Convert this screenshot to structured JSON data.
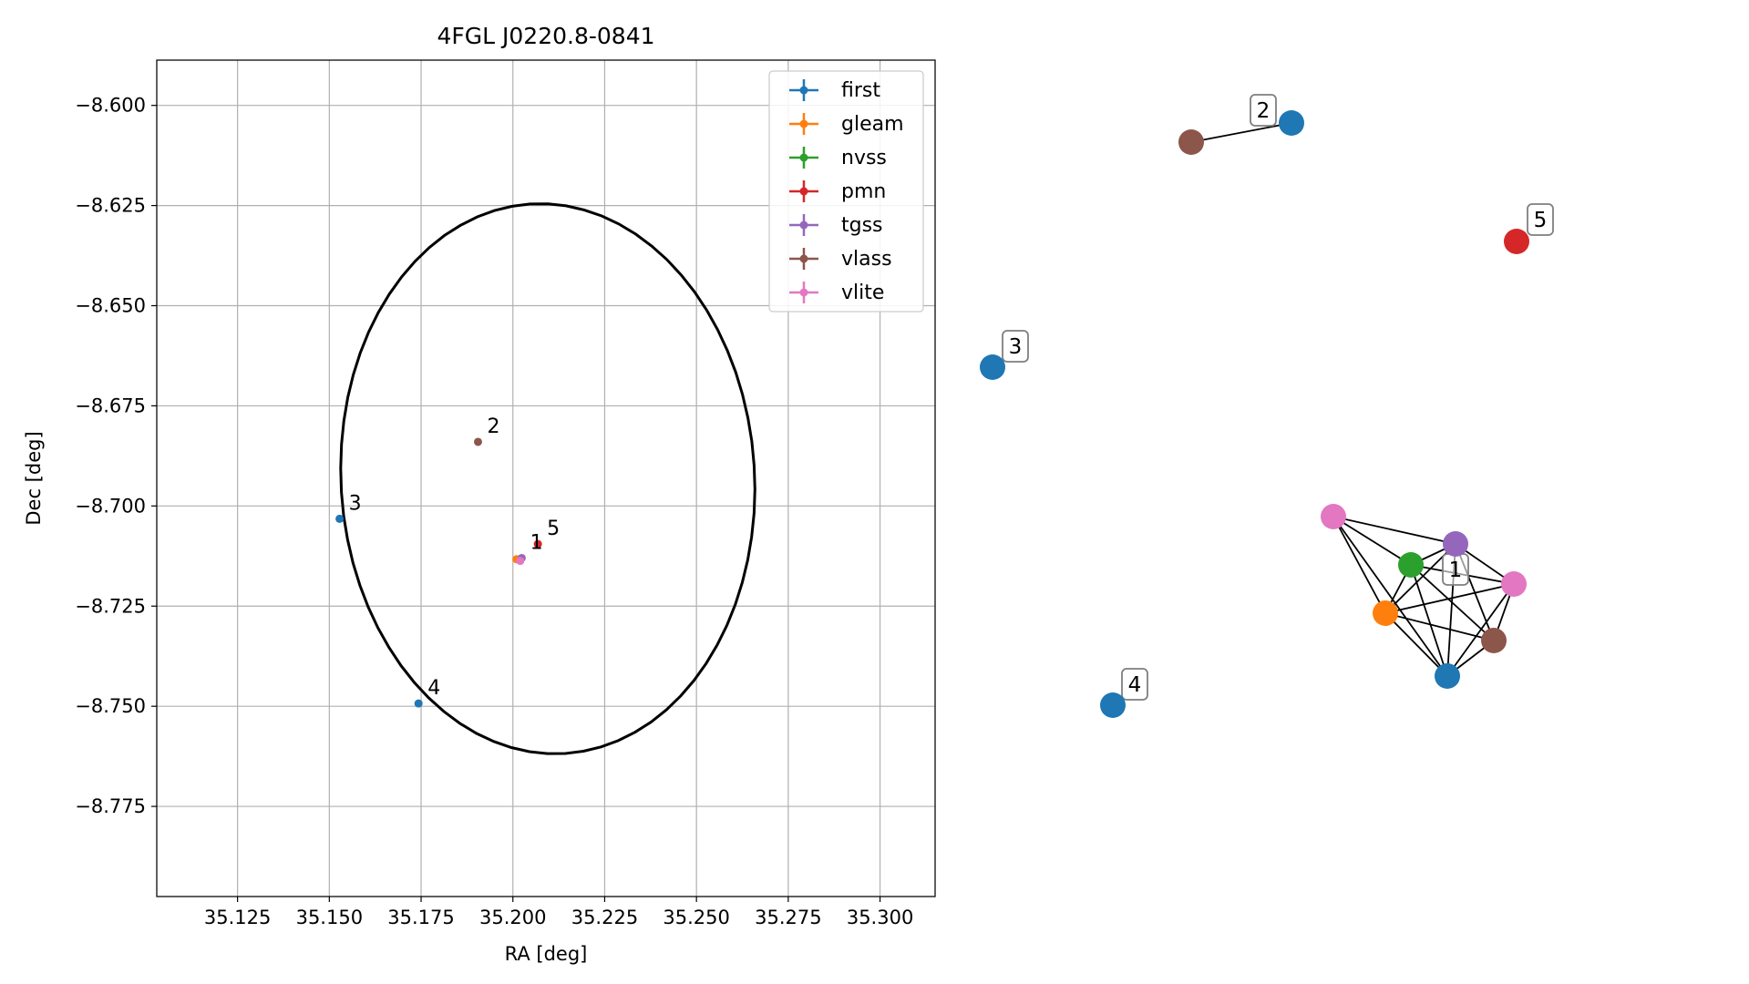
{
  "chart_data": [
    {
      "type": "scatter",
      "title": "4FGL J0220.8-0841",
      "xlabel": "RA [deg]",
      "ylabel": "Dec [deg]",
      "xlim": [
        35.103,
        35.315
      ],
      "ylim": [
        -8.7975,
        -8.5887
      ],
      "x_ticks": [
        "35.125",
        "35.150",
        "35.175",
        "35.200",
        "35.225",
        "35.250",
        "35.275",
        "35.300"
      ],
      "y_ticks": [
        "−8.600",
        "−8.625",
        "−8.650",
        "−8.675",
        "−8.700",
        "−8.725",
        "−8.750",
        "−8.775"
      ],
      "grid": true,
      "legend_position": "upper right",
      "colors": {
        "first": "#1f77b4",
        "gleam": "#ff7f0e",
        "nvss": "#2ca02c",
        "pmn": "#d62728",
        "tgss": "#9467bd",
        "vlass": "#8c564b",
        "vlite": "#e377c2"
      },
      "legend": [
        "first",
        "gleam",
        "nvss",
        "pmn",
        "tgss",
        "vlass",
        "vlite"
      ],
      "ellipse": {
        "center": [
          35.2095,
          -8.6932
        ],
        "ra_half_width": 0.0565,
        "dec_half_height": 0.0685,
        "rotation_deg": -6,
        "color": "#000000"
      },
      "points": [
        {
          "survey": "vlass",
          "ra": 35.1905,
          "dec": -8.684
        },
        {
          "survey": "first",
          "ra": 35.1528,
          "dec": -8.7032
        },
        {
          "survey": "first",
          "ra": 35.1743,
          "dec": -8.7493
        },
        {
          "survey": "pmn",
          "ra": 35.2068,
          "dec": -8.7095
        },
        {
          "survey": "gleam",
          "ra": 35.201,
          "dec": -8.7133
        },
        {
          "survey": "tgss",
          "ra": 35.2024,
          "dec": -8.713
        },
        {
          "survey": "vlite",
          "ra": 35.202,
          "dec": -8.7137
        }
      ],
      "point_labels": [
        {
          "text": "2",
          "ra": 35.1905,
          "dec": -8.684
        },
        {
          "text": "3",
          "ra": 35.1528,
          "dec": -8.7032
        },
        {
          "text": "4",
          "ra": 35.1743,
          "dec": -8.7493
        },
        {
          "text": "5",
          "ra": 35.2068,
          "dec": -8.7095
        },
        {
          "text": "1",
          "ra": 35.2022,
          "dec": -8.713
        }
      ]
    },
    {
      "type": "network",
      "nodes": [
        {
          "id": "g2_first",
          "survey": "first"
        },
        {
          "id": "g2_vlass",
          "survey": "vlass"
        },
        {
          "id": "g5_pmn",
          "survey": "pmn"
        },
        {
          "id": "g3_first",
          "survey": "first"
        },
        {
          "id": "g4_first",
          "survey": "first"
        },
        {
          "id": "g1_vlite_a",
          "survey": "vlite"
        },
        {
          "id": "g1_tgss",
          "survey": "tgss"
        },
        {
          "id": "g1_nvss",
          "survey": "nvss"
        },
        {
          "id": "g1_vlite_b",
          "survey": "vlite"
        },
        {
          "id": "g1_gleam",
          "survey": "gleam"
        },
        {
          "id": "g1_vlass",
          "survey": "vlass"
        },
        {
          "id": "g1_first",
          "survey": "first"
        }
      ],
      "edges": [
        [
          "g2_first",
          "g2_vlass"
        ],
        [
          "g1_vlite_a",
          "g1_tgss"
        ],
        [
          "g1_vlite_a",
          "g1_nvss"
        ],
        [
          "g1_vlite_a",
          "g1_gleam"
        ],
        [
          "g1_vlite_a",
          "g1_first"
        ],
        [
          "g1_tgss",
          "g1_nvss"
        ],
        [
          "g1_tgss",
          "g1_gleam"
        ],
        [
          "g1_tgss",
          "g1_first"
        ],
        [
          "g1_tgss",
          "g1_vlass"
        ],
        [
          "g1_tgss",
          "g1_vlite_b"
        ],
        [
          "g1_nvss",
          "g1_gleam"
        ],
        [
          "g1_nvss",
          "g1_first"
        ],
        [
          "g1_nvss",
          "g1_vlass"
        ],
        [
          "g1_nvss",
          "g1_vlite_b"
        ],
        [
          "g1_gleam",
          "g1_first"
        ],
        [
          "g1_gleam",
          "g1_vlass"
        ],
        [
          "g1_gleam",
          "g1_vlite_b"
        ],
        [
          "g1_vlite_b",
          "g1_first"
        ],
        [
          "g1_vlite_b",
          "g1_vlass"
        ],
        [
          "g1_first",
          "g1_vlass"
        ]
      ],
      "group_labels": [
        "1",
        "2",
        "3",
        "4",
        "5"
      ]
    }
  ]
}
